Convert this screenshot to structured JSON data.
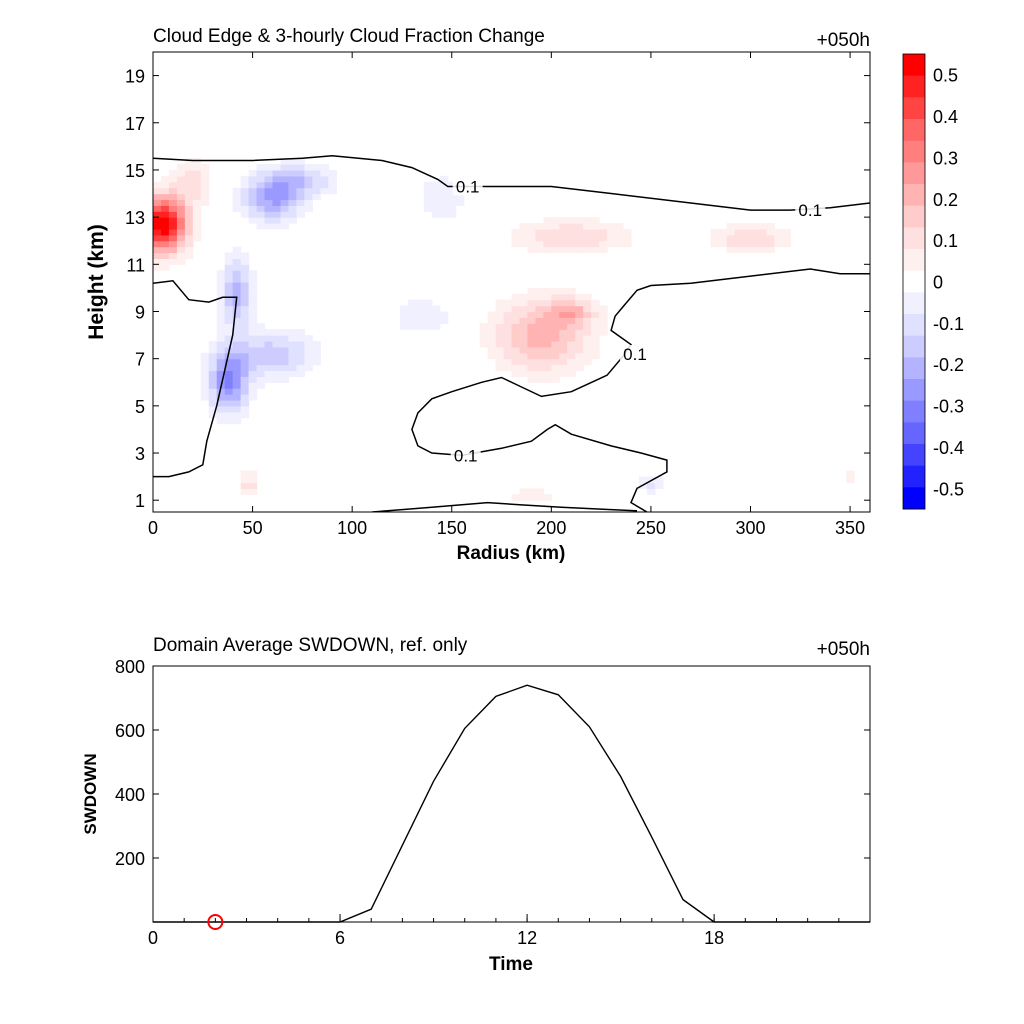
{
  "chart_data": [
    {
      "type": "heatmap",
      "title": "Cloud Edge & 3-hourly Cloud Fraction Change",
      "time_label": "+050h",
      "xlabel": "Radius (km)",
      "ylabel": "Height (km)",
      "xlim": [
        0,
        360
      ],
      "ylim": [
        0.5,
        20
      ],
      "xticks": [
        0,
        50,
        100,
        150,
        200,
        250,
        300,
        350
      ],
      "yticks": [
        1,
        3,
        5,
        7,
        9,
        11,
        13,
        15,
        17,
        19
      ],
      "colorbar": {
        "levels": [
          0.55,
          0.5,
          0.45,
          0.4,
          0.35,
          0.3,
          0.25,
          0.2,
          0.15,
          0.1,
          0.05,
          -0.05,
          -0.1,
          -0.15,
          -0.2,
          -0.25,
          -0.3,
          -0.35,
          -0.4,
          -0.45,
          -0.5,
          -0.55
        ],
        "colors": [
          "#ff0000",
          "#ff2222",
          "#ff4444",
          "#ff6666",
          "#ff7f7f",
          "#ff9999",
          "#ffb3b3",
          "#ffcccc",
          "#ffe0e0",
          "#fff0f0",
          "#ffffff",
          "#f0f0ff",
          "#e0e0ff",
          "#ccccff",
          "#b3b3ff",
          "#9999ff",
          "#7f7fff",
          "#6666ff",
          "#4444ff",
          "#2222ff",
          "#0000ff"
        ],
        "tick_labels": [
          "0.5",
          "0.4",
          "0.3",
          "0.2",
          "0.1",
          "0",
          "-0.1",
          "-0.2",
          "-0.3",
          "-0.4",
          "-0.5"
        ],
        "tick_values": [
          0.5,
          0.4,
          0.3,
          0.2,
          0.1,
          0,
          -0.1,
          -0.2,
          -0.3,
          -0.4,
          -0.5
        ]
      },
      "blobs": [
        {
          "r": 5,
          "z": 12.7,
          "sr": 12,
          "sz": 1.2,
          "v": 0.55
        },
        {
          "r": 20,
          "z": 14.5,
          "sr": 10,
          "sz": 1.0,
          "v": 0.12
        },
        {
          "r": 60,
          "z": 13.8,
          "sr": 15,
          "sz": 1.0,
          "v": -0.25
        },
        {
          "r": 75,
          "z": 14.6,
          "sr": 18,
          "sz": 0.7,
          "v": -0.15
        },
        {
          "r": 145,
          "z": 13.8,
          "sr": 12,
          "sz": 1.0,
          "v": -0.1
        },
        {
          "r": 42,
          "z": 9.8,
          "sr": 8,
          "sz": 1.5,
          "v": -0.22
        },
        {
          "r": 38,
          "z": 6.0,
          "sr": 10,
          "sz": 1.3,
          "v": -0.3
        },
        {
          "r": 60,
          "z": 7.2,
          "sr": 22,
          "sz": 1.0,
          "v": -0.18
        },
        {
          "r": 135,
          "z": 8.8,
          "sr": 15,
          "sz": 0.8,
          "v": -0.1
        },
        {
          "r": 210,
          "z": 12.2,
          "sr": 30,
          "sz": 0.7,
          "v": 0.15
        },
        {
          "r": 300,
          "z": 12.1,
          "sr": 20,
          "sz": 0.6,
          "v": 0.15
        },
        {
          "r": 195,
          "z": 8.0,
          "sr": 25,
          "sz": 1.6,
          "v": 0.22
        },
        {
          "r": 210,
          "z": 9.0,
          "sr": 12,
          "sz": 0.6,
          "v": 0.15
        },
        {
          "r": 250,
          "z": 1.7,
          "sr": 6,
          "sz": 0.4,
          "v": -0.12
        },
        {
          "r": 48,
          "z": 1.7,
          "sr": 5,
          "sz": 0.6,
          "v": 0.12
        },
        {
          "r": 190,
          "z": 1.2,
          "sr": 15,
          "sz": 0.4,
          "v": 0.08
        },
        {
          "r": 350,
          "z": 2.0,
          "sr": 10,
          "sz": 0.5,
          "v": 0.06
        }
      ],
      "contour_level": "0.1",
      "contours": [
        [
          [
            0,
            15.5
          ],
          [
            20,
            15.4
          ],
          [
            50,
            15.4
          ],
          [
            75,
            15.5
          ],
          [
            90,
            15.6
          ],
          [
            115,
            15.4
          ],
          [
            130,
            15.1
          ],
          [
            143,
            14.6
          ],
          [
            148,
            14.3
          ],
          [
            160,
            14.3
          ],
          [
            200,
            14.3
          ],
          [
            230,
            14.0
          ],
          [
            260,
            13.7
          ],
          [
            300,
            13.3
          ],
          [
            320,
            13.3
          ],
          [
            340,
            13.4
          ],
          [
            360,
            13.6
          ]
        ],
        [
          [
            0,
            10.2
          ],
          [
            10,
            10.3
          ],
          [
            18,
            9.5
          ],
          [
            28,
            9.4
          ],
          [
            35,
            9.6
          ],
          [
            42,
            9.6
          ],
          [
            40,
            8.0
          ],
          [
            36,
            6.5
          ],
          [
            32,
            5.0
          ],
          [
            27,
            3.5
          ],
          [
            25,
            2.5
          ],
          [
            18,
            2.2
          ],
          [
            8,
            2.0
          ],
          [
            0,
            2.0
          ]
        ],
        [
          [
            360,
            10.6
          ],
          [
            345,
            10.6
          ],
          [
            330,
            10.8
          ],
          [
            300,
            10.5
          ],
          [
            270,
            10.2
          ],
          [
            250,
            10.1
          ],
          [
            243,
            9.9
          ],
          [
            237,
            9.3
          ],
          [
            232,
            8.8
          ],
          [
            230,
            8.2
          ],
          [
            240,
            7.6
          ],
          [
            236,
            7.1
          ],
          [
            228,
            6.3
          ],
          [
            210,
            5.6
          ],
          [
            195,
            5.4
          ],
          [
            185,
            5.8
          ],
          [
            175,
            6.2
          ],
          [
            165,
            6.0
          ],
          [
            150,
            5.6
          ],
          [
            140,
            5.3
          ],
          [
            133,
            4.7
          ],
          [
            130,
            4.0
          ],
          [
            133,
            3.3
          ],
          [
            140,
            3.0
          ],
          [
            155,
            2.9
          ],
          [
            175,
            3.2
          ],
          [
            190,
            3.5
          ],
          [
            198,
            4.0
          ],
          [
            202,
            4.2
          ],
          [
            210,
            3.8
          ],
          [
            230,
            3.3
          ],
          [
            245,
            3.0
          ],
          [
            258,
            2.7
          ],
          [
            258,
            2.2
          ],
          [
            243,
            1.5
          ],
          [
            240,
            0.9
          ],
          [
            248,
            0.5
          ]
        ],
        [
          [
            110,
            0.5
          ],
          [
            140,
            0.7
          ],
          [
            168,
            0.9
          ],
          [
            185,
            0.8
          ],
          [
            205,
            0.7
          ],
          [
            230,
            0.6
          ],
          [
            243,
            0.55
          ]
        ]
      ],
      "contour_labels": [
        {
          "text": "0.1",
          "r": 158,
          "z": 14.3
        },
        {
          "text": "0.1",
          "r": 330,
          "z": 13.3
        },
        {
          "text": "0.1",
          "r": 242,
          "z": 7.2
        },
        {
          "text": "0.1",
          "r": 157,
          "z": 2.9
        }
      ]
    },
    {
      "type": "line",
      "title": "Domain Average SWDOWN, ref. only",
      "time_label": "+050h",
      "xlabel": "Time",
      "ylabel": "SWDOWN",
      "xlim": [
        0,
        23
      ],
      "ylim": [
        0,
        800
      ],
      "xticks": [
        0,
        6,
        12,
        18
      ],
      "yticks": [
        200,
        400,
        600,
        800
      ],
      "x": [
        0,
        1,
        2,
        3,
        4,
        5,
        6,
        7,
        8,
        9,
        10,
        11,
        12,
        13,
        14,
        15,
        16,
        17,
        18,
        19,
        20,
        21,
        22,
        23
      ],
      "values": [
        0,
        0,
        0,
        0,
        0,
        0,
        0,
        40,
        240,
        440,
        605,
        705,
        740,
        710,
        610,
        455,
        265,
        70,
        0,
        0,
        0,
        0,
        0,
        0
      ],
      "marker": {
        "x": 2,
        "y": 0,
        "color": "#ff0000"
      }
    }
  ]
}
